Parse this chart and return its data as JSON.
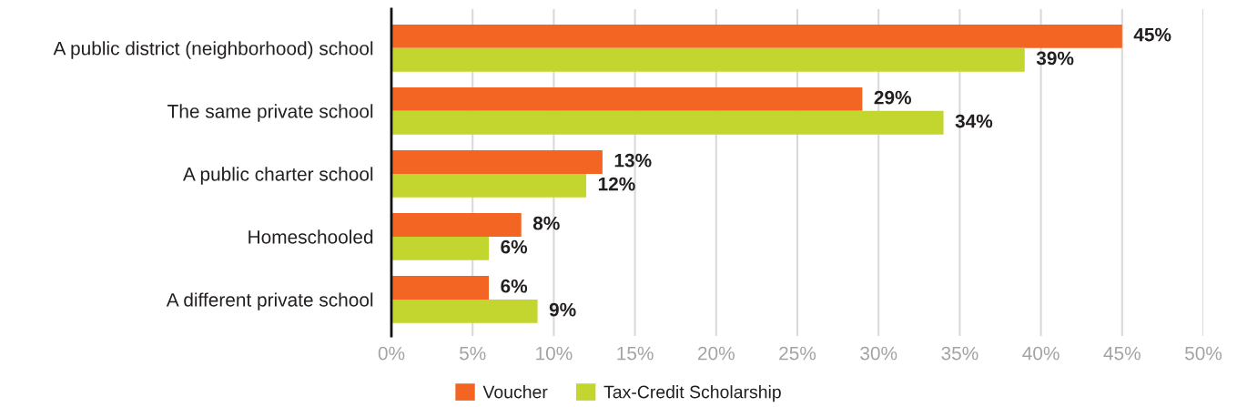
{
  "chart_data": {
    "type": "bar",
    "orientation": "horizontal",
    "categories": [
      "A public district (neighborhood) school",
      "The same private school",
      "A public charter school",
      "Homeschooled",
      "A different private school"
    ],
    "series": [
      {
        "name": "Voucher",
        "color": "#f26522",
        "values": [
          45,
          29,
          13,
          8,
          6
        ],
        "value_labels": [
          "45%",
          "29%",
          "13%",
          "8%",
          "6%"
        ]
      },
      {
        "name": "Tax-Credit Scholarship",
        "color": "#c3d52f",
        "values": [
          39,
          34,
          12,
          6,
          9
        ],
        "value_labels": [
          "39%",
          "34%",
          "12%",
          "6%",
          "9%"
        ]
      }
    ],
    "xlim": [
      0,
      50
    ],
    "xticks": [
      {
        "value": 0,
        "label": "0%"
      },
      {
        "value": 5,
        "label": "5%"
      },
      {
        "value": 10,
        "label": "10%"
      },
      {
        "value": 15,
        "label": "15%"
      },
      {
        "value": 20,
        "label": "20%"
      },
      {
        "value": 25,
        "label": "25%"
      },
      {
        "value": 30,
        "label": "30%"
      },
      {
        "value": 35,
        "label": "35%"
      },
      {
        "value": 40,
        "label": "40%"
      },
      {
        "value": 45,
        "label": "45%"
      },
      {
        "value": 50,
        "label": "50%"
      }
    ],
    "grid": "x",
    "legend": "bottom"
  }
}
